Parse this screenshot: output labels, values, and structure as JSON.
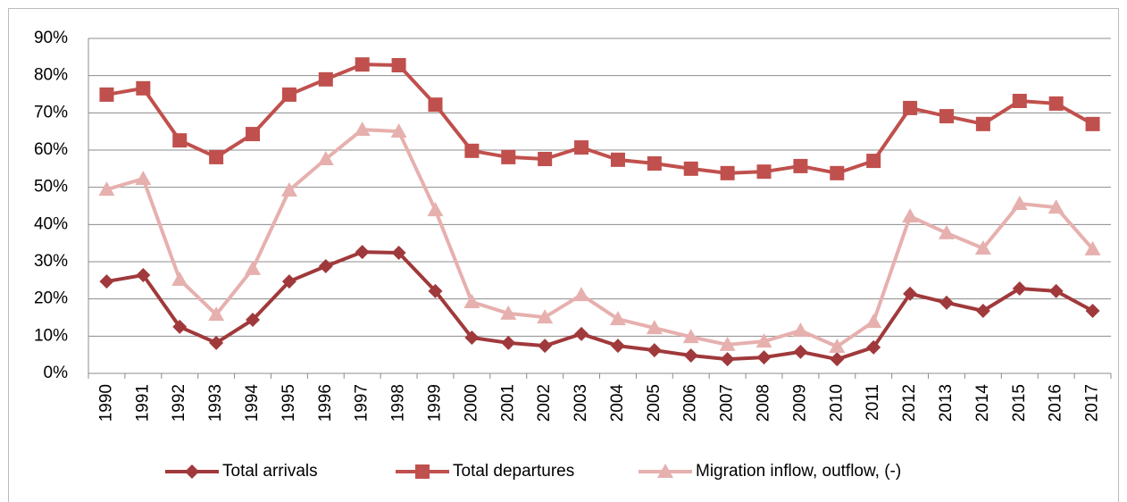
{
  "chart_data": {
    "type": "line",
    "categories": [
      "1990",
      "1991",
      "1992",
      "1993",
      "1994",
      "1995",
      "1996",
      "1997",
      "1998",
      "1999",
      "2000",
      "2001",
      "2002",
      "2003",
      "2004",
      "2005",
      "2006",
      "2007",
      "2008",
      "2009",
      "2010",
      "2011",
      "2012",
      "2013",
      "2014",
      "2015",
      "2016",
      "2017"
    ],
    "series": [
      {
        "name": "Total arrivals",
        "color": "#a0393b",
        "marker": "diamond",
        "values": [
          24.7,
          26.4,
          12.5,
          8.2,
          14.4,
          24.7,
          28.8,
          32.6,
          32.4,
          22.1,
          9.6,
          8.2,
          7.4,
          10.6,
          7.4,
          6.2,
          4.8,
          3.8,
          4.3,
          5.8,
          3.8,
          7.0,
          21.4,
          19.0,
          16.8,
          22.8,
          22.1,
          16.8
        ]
      },
      {
        "name": "Total departures",
        "color": "#c0504d",
        "marker": "square",
        "values": [
          74.9,
          76.6,
          62.6,
          58.1,
          64.3,
          74.9,
          79.0,
          83.0,
          82.8,
          72.2,
          59.8,
          58.1,
          57.6,
          60.7,
          57.4,
          56.4,
          55.0,
          53.8,
          54.2,
          55.7,
          53.8,
          57.1,
          71.3,
          69.1,
          67.0,
          73.2,
          72.5,
          67.0
        ]
      },
      {
        "name": "Migration inflow, outflow, (-)",
        "color": "#e6b0ae",
        "marker": "triangle",
        "values": [
          49.4,
          52.3,
          25.2,
          15.8,
          28.1,
          49.2,
          57.6,
          65.5,
          65.0,
          43.9,
          19.2,
          16.1,
          15.1,
          21.1,
          14.6,
          12.2,
          9.8,
          7.7,
          8.6,
          11.5,
          7.2,
          13.9,
          42.2,
          37.7,
          33.6,
          45.6,
          44.6,
          33.4
        ]
      }
    ],
    "ylim": [
      0,
      90
    ],
    "yticks": [
      {
        "value": 0,
        "label": "0%"
      },
      {
        "value": 10,
        "label": "10%"
      },
      {
        "value": 20,
        "label": "20%"
      },
      {
        "value": 30,
        "label": "30%"
      },
      {
        "value": 40,
        "label": "40%"
      },
      {
        "value": 50,
        "label": "50%"
      },
      {
        "value": 60,
        "label": "60%"
      },
      {
        "value": 70,
        "label": "70%"
      },
      {
        "value": 80,
        "label": "80%"
      },
      {
        "value": 90,
        "label": "90%"
      }
    ],
    "grid": true,
    "legend": "bottom"
  }
}
